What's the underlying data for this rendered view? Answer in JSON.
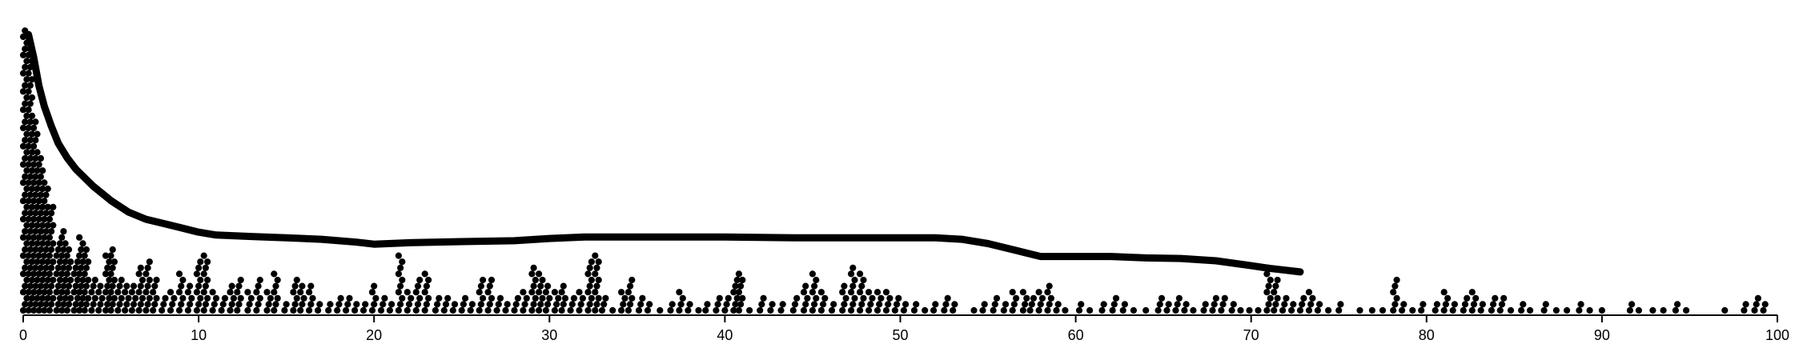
{
  "chart_data": {
    "type": "scatter",
    "title": "",
    "xlabel": "",
    "ylabel": "",
    "xlim": [
      0,
      100
    ],
    "grid": false,
    "legend": "none",
    "x_ticks": [
      0,
      10,
      20,
      30,
      40,
      50,
      60,
      70,
      80,
      90,
      100
    ],
    "x_tick_labels": [
      "0",
      "10",
      "20",
      "30",
      "40",
      "50",
      "60",
      "70",
      "80",
      "90",
      "100"
    ],
    "colors": {
      "points": "#000000",
      "line": "#000000",
      "axis": "#000000"
    },
    "point_column_counts": [
      [
        0.1,
        47
      ],
      [
        0.4,
        44
      ],
      [
        0.7,
        32
      ],
      [
        1.0,
        26
      ],
      [
        1.3,
        22
      ],
      [
        1.6,
        18
      ],
      [
        2.0,
        12
      ],
      [
        2.3,
        14
      ],
      [
        2.6,
        11
      ],
      [
        3.0,
        9
      ],
      [
        3.3,
        13
      ],
      [
        3.6,
        11
      ],
      [
        4.0,
        6
      ],
      [
        4.4,
        5
      ],
      [
        4.8,
        10
      ],
      [
        5.1,
        11
      ],
      [
        5.5,
        6
      ],
      [
        5.9,
        5
      ],
      [
        6.3,
        5
      ],
      [
        6.7,
        8
      ],
      [
        7.1,
        9
      ],
      [
        7.5,
        6
      ],
      [
        8.0,
        3
      ],
      [
        8.5,
        4
      ],
      [
        9.0,
        7
      ],
      [
        9.5,
        5
      ],
      [
        10.0,
        9
      ],
      [
        10.4,
        10
      ],
      [
        10.9,
        4
      ],
      [
        11.4,
        3
      ],
      [
        11.9,
        5
      ],
      [
        12.3,
        6
      ],
      [
        12.9,
        4
      ],
      [
        13.4,
        6
      ],
      [
        14.0,
        4
      ],
      [
        14.4,
        7
      ],
      [
        15.0,
        2
      ],
      [
        15.5,
        6
      ],
      [
        15.9,
        5
      ],
      [
        16.4,
        5
      ],
      [
        16.9,
        2
      ],
      [
        17.5,
        2
      ],
      [
        18.0,
        3
      ],
      [
        18.5,
        3
      ],
      [
        19.0,
        2
      ],
      [
        19.5,
        2
      ],
      [
        20.0,
        5
      ],
      [
        20.5,
        3
      ],
      [
        21.0,
        2
      ],
      [
        21.5,
        10
      ],
      [
        22.0,
        4
      ],
      [
        22.5,
        6
      ],
      [
        23.0,
        7
      ],
      [
        23.6,
        3
      ],
      [
        24.1,
        3
      ],
      [
        24.6,
        2
      ],
      [
        25.1,
        3
      ],
      [
        25.6,
        2
      ],
      [
        26.1,
        6
      ],
      [
        26.6,
        6
      ],
      [
        27.1,
        3
      ],
      [
        27.6,
        2
      ],
      [
        28.1,
        3
      ],
      [
        28.6,
        4
      ],
      [
        29.1,
        8
      ],
      [
        29.5,
        7
      ],
      [
        29.9,
        5
      ],
      [
        30.4,
        4
      ],
      [
        30.8,
        5
      ],
      [
        31.3,
        3
      ],
      [
        31.8,
        4
      ],
      [
        32.3,
        9
      ],
      [
        32.7,
        10
      ],
      [
        33.1,
        3
      ],
      [
        33.7,
        1
      ],
      [
        34.2,
        4
      ],
      [
        34.6,
        6
      ],
      [
        35.2,
        3
      ],
      [
        35.7,
        2
      ],
      [
        36.4,
        1
      ],
      [
        37.0,
        2
      ],
      [
        37.5,
        4
      ],
      [
        38.0,
        2
      ],
      [
        38.6,
        1
      ],
      [
        39.0,
        2
      ],
      [
        39.6,
        3
      ],
      [
        40.1,
        3
      ],
      [
        40.6,
        6
      ],
      [
        40.9,
        7
      ],
      [
        41.5,
        1
      ],
      [
        42.1,
        3
      ],
      [
        42.7,
        2
      ],
      [
        43.3,
        2
      ],
      [
        44.0,
        3
      ],
      [
        44.6,
        5
      ],
      [
        45.1,
        7
      ],
      [
        45.6,
        4
      ],
      [
        46.2,
        2
      ],
      [
        46.8,
        5
      ],
      [
        47.3,
        8
      ],
      [
        47.8,
        7
      ],
      [
        48.3,
        4
      ],
      [
        48.8,
        4
      ],
      [
        49.3,
        4
      ],
      [
        49.8,
        3
      ],
      [
        50.3,
        2
      ],
      [
        50.9,
        2
      ],
      [
        51.5,
        1
      ],
      [
        52.0,
        2
      ],
      [
        52.6,
        3
      ],
      [
        53.1,
        2
      ],
      [
        54.3,
        1
      ],
      [
        54.8,
        2
      ],
      [
        55.4,
        3
      ],
      [
        56.0,
        2
      ],
      [
        56.5,
        4
      ],
      [
        57.1,
        4
      ],
      [
        57.5,
        3
      ],
      [
        58.0,
        4
      ],
      [
        58.5,
        5
      ],
      [
        59.0,
        2
      ],
      [
        59.5,
        1
      ],
      [
        60.3,
        2
      ],
      [
        60.9,
        1
      ],
      [
        61.6,
        2
      ],
      [
        62.2,
        3
      ],
      [
        62.8,
        2
      ],
      [
        63.4,
        1
      ],
      [
        64.1,
        1
      ],
      [
        64.8,
        3
      ],
      [
        65.3,
        2
      ],
      [
        65.8,
        3
      ],
      [
        66.3,
        2
      ],
      [
        66.8,
        1
      ],
      [
        67.4,
        2
      ],
      [
        67.9,
        3
      ],
      [
        68.4,
        3
      ],
      [
        69.0,
        2
      ],
      [
        69.5,
        1
      ],
      [
        70.0,
        1
      ],
      [
        70.5,
        1
      ],
      [
        71.0,
        8
      ],
      [
        71.4,
        6
      ],
      [
        71.9,
        3
      ],
      [
        72.4,
        2
      ],
      [
        72.9,
        3
      ],
      [
        73.4,
        4
      ],
      [
        73.9,
        2
      ],
      [
        74.5,
        1
      ],
      [
        75.1,
        2
      ],
      [
        76.3,
        1
      ],
      [
        77.0,
        1
      ],
      [
        77.6,
        1
      ],
      [
        78.2,
        6
      ],
      [
        78.7,
        2
      ],
      [
        79.3,
        1
      ],
      [
        79.8,
        2
      ],
      [
        80.6,
        2
      ],
      [
        81.1,
        4
      ],
      [
        81.6,
        2
      ],
      [
        82.2,
        3
      ],
      [
        82.7,
        4
      ],
      [
        83.2,
        2
      ],
      [
        83.8,
        3
      ],
      [
        84.3,
        3
      ],
      [
        84.9,
        1
      ],
      [
        85.5,
        2
      ],
      [
        86.0,
        1
      ],
      [
        86.8,
        2
      ],
      [
        87.5,
        1
      ],
      [
        88.1,
        1
      ],
      [
        88.8,
        2
      ],
      [
        89.4,
        1
      ],
      [
        90.1,
        1
      ],
      [
        91.7,
        2
      ],
      [
        92.2,
        1
      ],
      [
        93.0,
        1
      ],
      [
        93.6,
        1
      ],
      [
        94.3,
        2
      ],
      [
        94.9,
        1
      ],
      [
        97.1,
        1
      ],
      [
        98.2,
        2
      ],
      [
        98.8,
        3
      ],
      [
        99.3,
        2
      ]
    ],
    "trend_line": [
      [
        0.3,
        98
      ],
      [
        0.6,
        90
      ],
      [
        0.9,
        80
      ],
      [
        1.2,
        73
      ],
      [
        1.6,
        66
      ],
      [
        2.0,
        60
      ],
      [
        2.5,
        55
      ],
      [
        3.0,
        51
      ],
      [
        4.0,
        45
      ],
      [
        5.0,
        40
      ],
      [
        6.0,
        36
      ],
      [
        7.0,
        33.5
      ],
      [
        8.0,
        32
      ],
      [
        9.0,
        30.5
      ],
      [
        10.0,
        29
      ],
      [
        11.0,
        28
      ],
      [
        13.0,
        27.5
      ],
      [
        15.0,
        27
      ],
      [
        17.0,
        26.5
      ],
      [
        19.0,
        25.5
      ],
      [
        20.0,
        24.8
      ],
      [
        22.0,
        25.3
      ],
      [
        25.0,
        25.7
      ],
      [
        28.0,
        26
      ],
      [
        30.0,
        26.8
      ],
      [
        32.0,
        27.3
      ],
      [
        35.0,
        27.3
      ],
      [
        40.0,
        27.3
      ],
      [
        44.0,
        27
      ],
      [
        48.0,
        27
      ],
      [
        52.0,
        27
      ],
      [
        53.5,
        26.5
      ],
      [
        55.0,
        25
      ],
      [
        57.0,
        22
      ],
      [
        58.0,
        20.5
      ],
      [
        62.0,
        20.5
      ],
      [
        64.0,
        20
      ],
      [
        66.0,
        19.8
      ],
      [
        68.0,
        19
      ],
      [
        70.0,
        17.3
      ],
      [
        71.0,
        16.4
      ],
      [
        72.0,
        15.7
      ],
      [
        72.8,
        15.1
      ]
    ]
  }
}
